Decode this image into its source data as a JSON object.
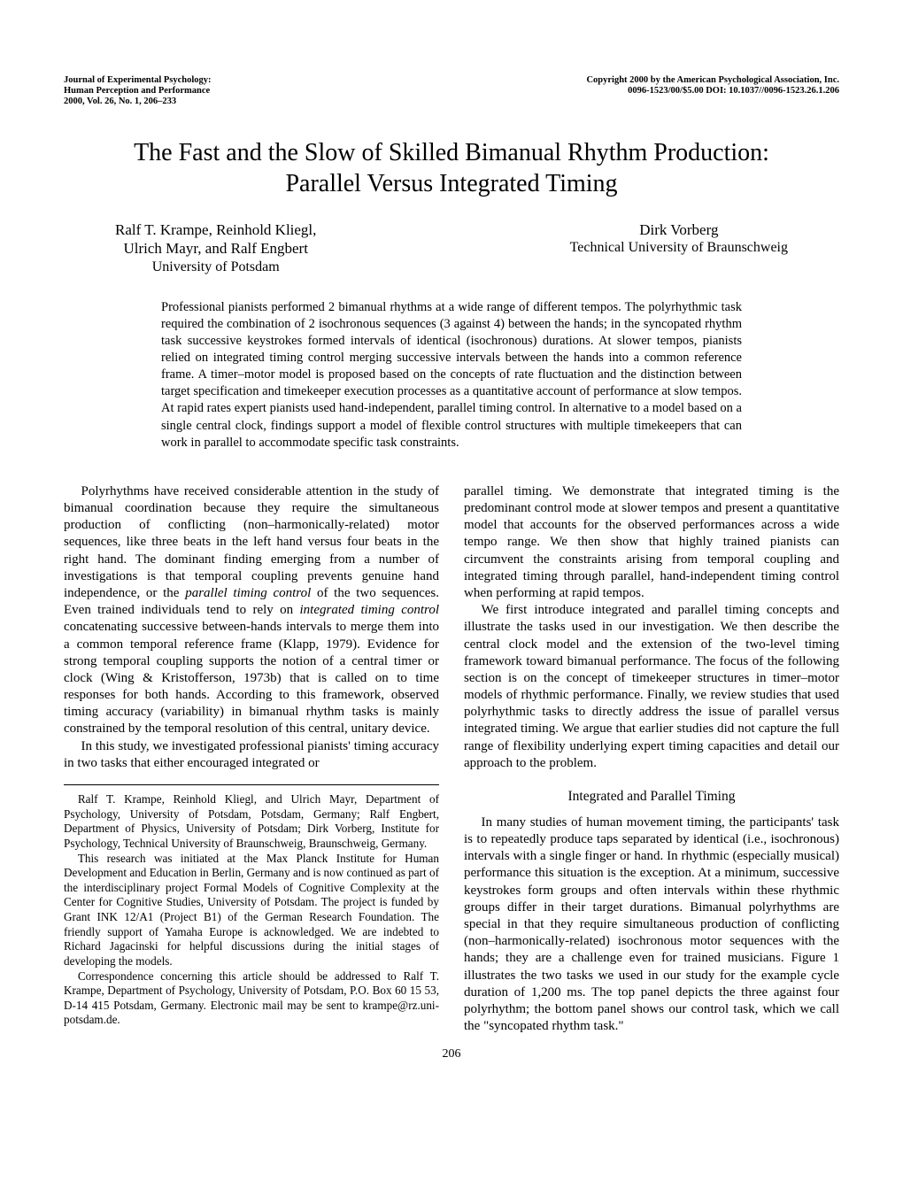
{
  "header": {
    "journal_line1": "Journal of Experimental Psychology:",
    "journal_line2": "Human Perception and Performance",
    "journal_line3": "2000, Vol. 26, No. 1, 206–233",
    "copyright_line1": "Copyright 2000 by the American Psychological Association, Inc.",
    "copyright_line2": "0096-1523/00/$5.00   DOI: 10.1037//0096-1523.26.1.206"
  },
  "title_line1": "The Fast and the Slow of Skilled Bimanual Rhythm Production:",
  "title_line2": "Parallel Versus Integrated Timing",
  "authors": {
    "left_names": "Ralf T. Krampe, Reinhold Kliegl,",
    "left_names2": "Ulrich Mayr, and Ralf Engbert",
    "left_affil": "University of Potsdam",
    "right_names": "Dirk Vorberg",
    "right_affil": "Technical University of Braunschweig"
  },
  "abstract": "Professional pianists performed 2 bimanual rhythms at a wide range of different tempos. The polyrhythmic task required the combination of 2 isochronous sequences (3 against 4) between the hands; in the syncopated rhythm task successive keystrokes formed intervals of identical (isochronous) durations. At slower tempos, pianists relied on integrated timing control merging successive intervals between the hands into a common reference frame. A timer–motor model is proposed based on the concepts of rate fluctuation and the distinction between target specification and timekeeper execution processes as a quantitative account of performance at slow tempos. At rapid rates expert pianists used hand-independent, parallel timing control. In alternative to a model based on a single central clock, findings support a model of flexible control structures with multiple timekeepers that can work in parallel to accommodate specific task constraints.",
  "body": {
    "p1a": "Polyrhythms have received considerable attention in the study of bimanual coordination because they require the simultaneous production of conflicting (non–harmonically-related) motor sequences, like three beats in the left hand versus four beats in the right hand. The dominant finding emerging from a number of investigations is that temporal coupling prevents genuine hand independence, or the ",
    "p1_em1": "parallel timing control",
    "p1b": " of the two sequences. Even trained individuals tend to rely on ",
    "p1_em2": "integrated timing control",
    "p1c": " concatenating successive between-hands intervals to merge them into a common temporal reference frame (Klapp, 1979). Evidence for strong temporal coupling supports the notion of a central timer or clock (Wing & Kristofferson, 1973b) that is called on to time responses for both hands. According to this framework, observed timing accuracy (variability) in bimanual rhythm tasks is mainly constrained by the temporal resolution of this central, unitary device.",
    "p2": "In this study, we investigated professional pianists' timing accuracy in two tasks that either encouraged integrated or",
    "p3": "parallel timing. We demonstrate that integrated timing is the predominant control mode at slower tempos and present a quantitative model that accounts for the observed performances across a wide tempo range. We then show that highly trained pianists can circumvent the constraints arising from temporal coupling and integrated timing through parallel, hand-independent timing control when performing at rapid tempos.",
    "p4": "We first introduce integrated and parallel timing concepts and illustrate the tasks used in our investigation. We then describe the central clock model and the extension of the two-level timing framework toward bimanual performance. The focus of the following section is on the concept of timekeeper structures in timer–motor models of rhythmic performance. Finally, we review studies that used polyrhythmic tasks to directly address the issue of parallel versus integrated timing. We argue that earlier studies did not capture the full range of flexibility underlying expert timing capacities and detail our approach to the problem.",
    "heading1": "Integrated and Parallel Timing",
    "p5": "In many studies of human movement timing, the participants' task is to repeatedly produce taps separated by identical (i.e., isochronous) intervals with a single finger or hand. In rhythmic (especially musical) performance this situation is the exception. At a minimum, successive keystrokes form groups and often intervals within these rhythmic groups differ in their target durations. Bimanual polyrhythms are special in that they require simultaneous production of conflicting (non–harmonically-related) isochronous motor sequences with the hands; they are a challenge even for trained musicians. Figure 1 illustrates the two tasks we used in our study for the example cycle duration of 1,200 ms. The top panel depicts the three against four polyrhythm; the bottom panel shows our control task, which we call the \"syncopated rhythm task.\""
  },
  "footnote": {
    "f1": "Ralf T. Krampe, Reinhold Kliegl, and Ulrich Mayr, Department of Psychology, University of Potsdam, Potsdam, Germany; Ralf Engbert, Department of Physics, University of Potsdam; Dirk Vorberg, Institute for Psychology, Technical University of Braunschweig, Braunschweig, Germany.",
    "f2": "This research was initiated at the Max Planck Institute for Human Development and Education in Berlin, Germany and is now continued as part of the interdisciplinary project Formal Models of Cognitive Complexity at the Center for Cognitive Studies, University of Potsdam. The project is funded by Grant INK 12/A1 (Project B1) of the German Research Foundation. The friendly support of Yamaha Europe is acknowledged. We are indebted to Richard Jagacinski for helpful discussions during the initial stages of developing the models.",
    "f3": "Correspondence concerning this article should be addressed to Ralf T. Krampe, Department of Psychology, University of Potsdam, P.O. Box 60 15 53, D-14 415 Potsdam, Germany. Electronic mail may be sent to krampe@rz.uni-potsdam.de."
  },
  "page_number": "206"
}
